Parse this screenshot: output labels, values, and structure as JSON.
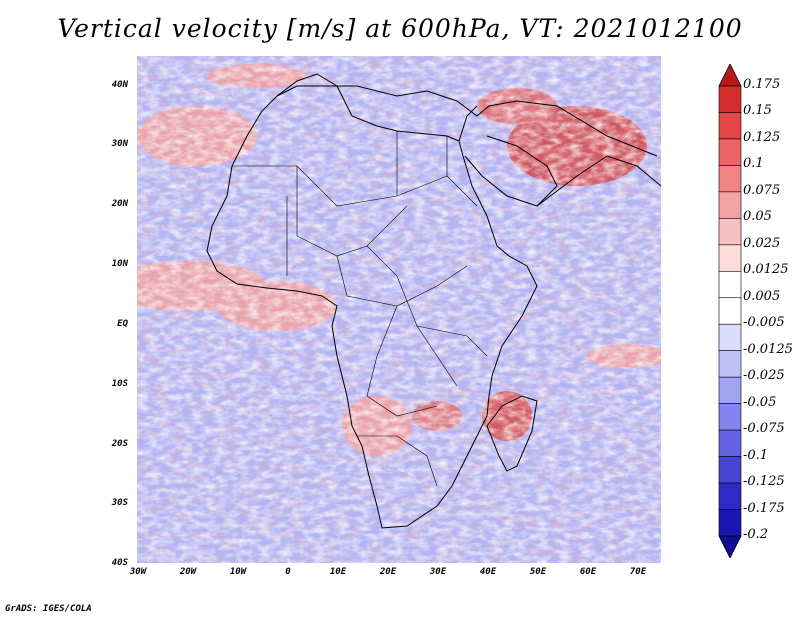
{
  "map": {
    "title": "Vertical velocity [m/s] at 600hPa, VT: 2021012100",
    "lat_labels": [
      "40N",
      "30N",
      "20N",
      "10N",
      "EQ",
      "10S",
      "20S",
      "30S",
      "40S"
    ],
    "lon_labels": [
      "30W",
      "20W",
      "10W",
      "0",
      "10E",
      "20E",
      "30E",
      "40E",
      "50E",
      "60E",
      "70E"
    ],
    "credit": "GrADS: IGES/COLA",
    "colorbar": {
      "levels": [
        "0.175",
        "0.15",
        "0.125",
        "0.1",
        "0.075",
        "0.05",
        "0.025",
        "0.0125",
        "0.005",
        "-0.005",
        "-0.0125",
        "-0.025",
        "-0.05",
        "-0.075",
        "-0.1",
        "-0.125",
        "-0.175",
        "-0.2"
      ],
      "colors": [
        "#b81818",
        "#d42c2c",
        "#e24646",
        "#ec6464",
        "#f08484",
        "#f4a2a2",
        "#f8c0c0",
        "#fcdcdc",
        "#ffffff",
        "#ffffff",
        "#dcdcfc",
        "#c0c0f8",
        "#a2a2f2",
        "#8484ec",
        "#6464e2",
        "#4646d6",
        "#2c2cc4",
        "#1818b0",
        "#0c0c98"
      ]
    }
  }
}
